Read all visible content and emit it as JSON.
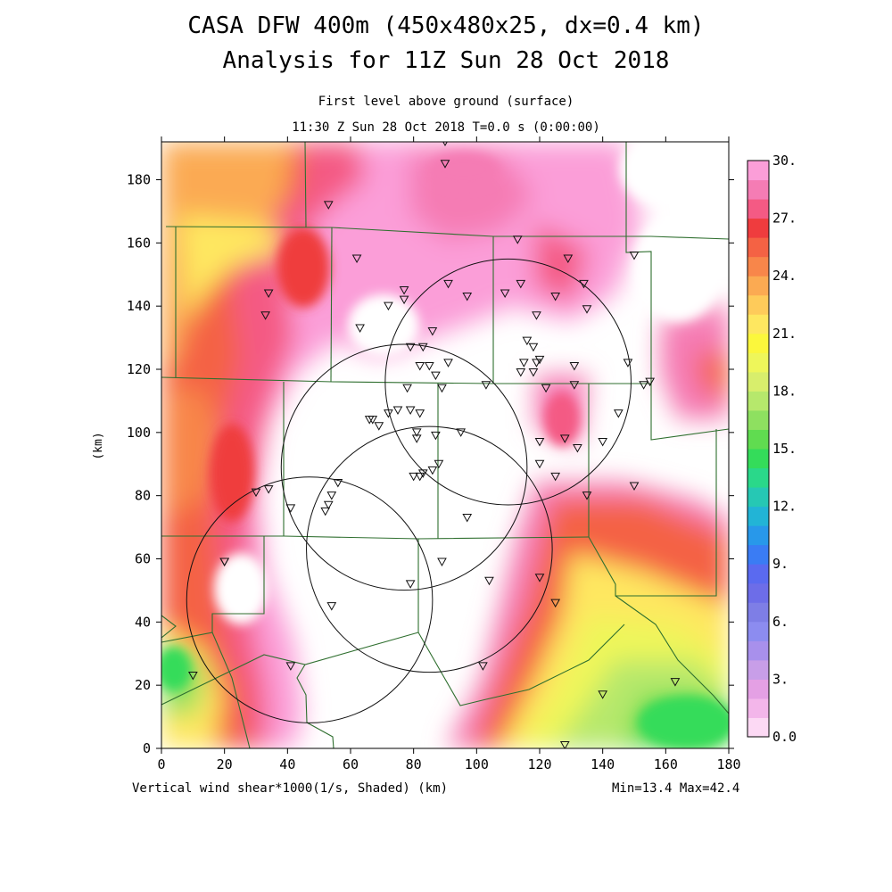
{
  "header": {
    "title_line1": "CASA DFW 400m (450x480x25, dx=0.4 km)",
    "title_line2": "Analysis for 11Z Sun 28 Oct 2018",
    "subtitle_line1": "First level above ground (surface)",
    "subtitle_line2": "11:30 Z Sun 28 Oct 2018   T=0.0 s (0:00:00)"
  },
  "footer": {
    "variable_label": "Vertical wind shear*1000(1/s, Shaded)  (km)",
    "range_label": "Min=13.4 Max=42.4"
  },
  "chart_data": {
    "type": "heatmap",
    "title": "Vertical wind shear*1000(1/s, Shaded)",
    "xlabel": "(km)",
    "ylabel": "(km)",
    "xlim": [
      0,
      180
    ],
    "ylim": [
      0,
      192
    ],
    "x_ticks": [
      0,
      20,
      40,
      60,
      80,
      100,
      120,
      140,
      160,
      180
    ],
    "y_ticks": [
      0,
      20,
      40,
      60,
      80,
      100,
      120,
      140,
      160,
      180
    ],
    "stats": {
      "min": 13.4,
      "max": 42.4
    },
    "colorbar": {
      "labels": [
        "0.0",
        "3.",
        "6.",
        "9.",
        "12.",
        "15.",
        "18.",
        "21.",
        "24.",
        "27.",
        "30."
      ],
      "colors": [
        "#fcd9f4",
        "#f3b6ea",
        "#e4a0e4",
        "#c89ee8",
        "#a890ec",
        "#8c8cf0",
        "#7e7ee6",
        "#6d6de8",
        "#5a6af0",
        "#3a7cf4",
        "#2898ea",
        "#22b4d6",
        "#26c8b4",
        "#2ad88a",
        "#34dc5a",
        "#60dc50",
        "#8ee060",
        "#b6e86c",
        "#d8ee6c",
        "#eef65a",
        "#fbf73c",
        "#fee760",
        "#fecb5a",
        "#fbaa52",
        "#f8864a",
        "#f46244",
        "#ef3c3e",
        "#f45a84",
        "#f57cb4",
        "#fb9ed8"
      ]
    },
    "radar_circles_km": [
      {
        "cx": 77,
        "cy": 89,
        "r": 39
      },
      {
        "cx": 110,
        "cy": 116,
        "r": 39
      },
      {
        "cx": 85,
        "cy": 63,
        "r": 39
      },
      {
        "cx": 47,
        "cy": 47,
        "r": 39
      }
    ],
    "stations_km": [
      [
        90,
        192
      ],
      [
        90,
        185
      ],
      [
        53,
        172
      ],
      [
        62,
        155
      ],
      [
        34,
        144
      ],
      [
        33,
        137
      ],
      [
        63,
        133
      ],
      [
        72,
        140
      ],
      [
        77,
        145
      ],
      [
        77,
        142
      ],
      [
        86,
        132
      ],
      [
        91,
        147
      ],
      [
        97,
        143
      ],
      [
        109,
        144
      ],
      [
        114,
        147
      ],
      [
        113,
        161
      ],
      [
        119,
        137
      ],
      [
        125,
        143
      ],
      [
        129,
        155
      ],
      [
        134,
        147
      ],
      [
        135,
        139
      ],
      [
        150,
        156
      ],
      [
        116,
        129
      ],
      [
        118,
        127
      ],
      [
        115,
        122
      ],
      [
        114,
        119
      ],
      [
        119,
        122
      ],
      [
        120,
        123
      ],
      [
        118,
        119
      ],
      [
        122,
        114
      ],
      [
        131,
        121
      ],
      [
        131,
        115
      ],
      [
        148,
        122
      ],
      [
        153,
        115
      ],
      [
        155,
        116
      ],
      [
        145,
        106
      ],
      [
        140,
        97
      ],
      [
        132,
        95
      ],
      [
        128,
        98
      ],
      [
        120,
        97
      ],
      [
        120,
        90
      ],
      [
        103,
        115
      ],
      [
        89,
        114
      ],
      [
        91,
        122
      ],
      [
        87,
        118
      ],
      [
        85,
        121
      ],
      [
        82,
        121
      ],
      [
        83,
        127
      ],
      [
        79,
        127
      ],
      [
        78,
        114
      ],
      [
        75,
        107
      ],
      [
        72,
        106
      ],
      [
        67,
        104
      ],
      [
        66,
        104
      ],
      [
        69,
        102
      ],
      [
        79,
        107
      ],
      [
        82,
        106
      ],
      [
        81,
        100
      ],
      [
        81,
        98
      ],
      [
        87,
        99
      ],
      [
        95,
        100
      ],
      [
        88,
        90
      ],
      [
        86,
        88
      ],
      [
        83,
        87
      ],
      [
        82,
        86
      ],
      [
        80,
        86
      ],
      [
        54,
        80
      ],
      [
        53,
        77
      ],
      [
        52,
        75
      ],
      [
        41,
        76
      ],
      [
        34,
        82
      ],
      [
        30,
        81
      ],
      [
        56,
        84
      ],
      [
        79,
        52
      ],
      [
        89,
        59
      ],
      [
        54,
        45
      ],
      [
        97,
        73
      ],
      [
        104,
        53
      ],
      [
        120,
        54
      ],
      [
        125,
        46
      ],
      [
        125,
        86
      ],
      [
        135,
        80
      ],
      [
        150,
        83
      ],
      [
        102,
        26
      ],
      [
        41,
        26
      ],
      [
        20,
        59
      ],
      [
        20,
        59
      ],
      [
        10,
        23
      ],
      [
        140,
        17
      ],
      [
        163,
        21
      ],
      [
        128,
        1
      ]
    ]
  }
}
